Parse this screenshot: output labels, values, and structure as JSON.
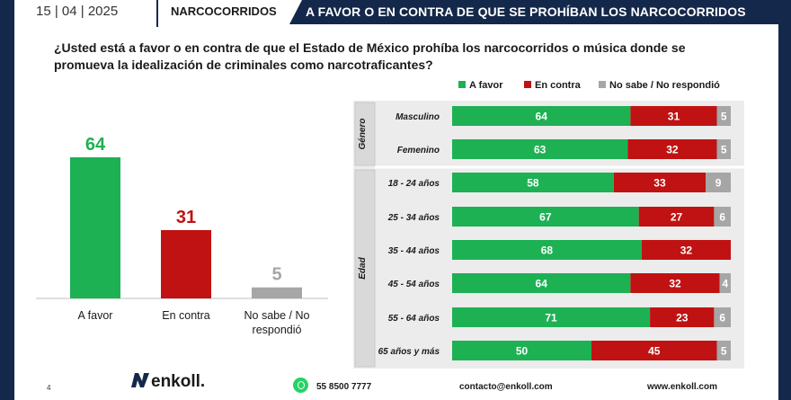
{
  "header": {
    "date": "15 | 04 | 2025",
    "section": "NARCOCORRIDOS",
    "title": "A FAVOR O EN CONTRA DE QUE SE PROHÍBAN LOS NARCOCORRIDOS"
  },
  "question": "¿Usted está a favor o en contra de que el Estado de México prohíba los narcocorridos o música donde se promueva la idealización de criminales como narcotraficantes?",
  "colors": {
    "favor": "#1db154",
    "contra": "#c01212",
    "nosabe": "#a6a6a6",
    "navy": "#14284b"
  },
  "chart_data": [
    {
      "type": "bar",
      "categories": [
        "A favor",
        "En contra",
        "No sabe / No respondió"
      ],
      "values": [
        64,
        31,
        5
      ],
      "ylim": [
        0,
        64
      ]
    },
    {
      "type": "bar",
      "orientation": "horizontal",
      "stacked": true,
      "legend_position": "top",
      "series_names": [
        "A favor",
        "En contra",
        "No sabe / No respondió"
      ],
      "groups": [
        {
          "label": "Género",
          "rows": [
            {
              "label": "Masculino",
              "values": [
                64,
                31,
                5
              ]
            },
            {
              "label": "Femenino",
              "values": [
                63,
                32,
                5
              ]
            }
          ]
        },
        {
          "label": "Edad",
          "rows": [
            {
              "label": "18 - 24 años",
              "values": [
                58,
                33,
                9
              ]
            },
            {
              "label": "25 - 34 años",
              "values": [
                67,
                27,
                6
              ]
            },
            {
              "label": "35 - 44 años",
              "values": [
                68,
                32,
                0
              ]
            },
            {
              "label": "45 - 54 años",
              "values": [
                64,
                32,
                4
              ]
            },
            {
              "label": "55 - 64 años",
              "values": [
                71,
                23,
                6
              ]
            },
            {
              "label": "65  años y más",
              "values": [
                50,
                45,
                5
              ]
            }
          ]
        }
      ]
    }
  ],
  "footer": {
    "page": "4",
    "logo": "enkoll.",
    "phone": "55 8500 7777",
    "email": "contacto@enkoll.com",
    "web": "www.enkoll.com"
  }
}
